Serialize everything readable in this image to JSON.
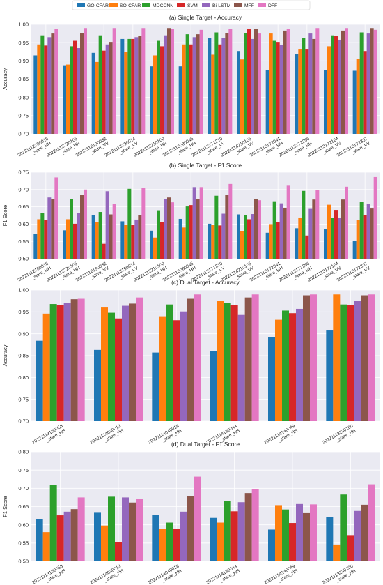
{
  "chart_data": [
    {
      "type": "bar",
      "title": "(a) Single Target - Accuracy",
      "ylabel": "Accuracy",
      "categories": [
        "20221112180018\n_stare_HH",
        "20221112220105\n_stare_HH",
        "20221112190032\n_stare_VV",
        "20221113190014\n_stare_VV",
        "20221112210100\n_stare_HH",
        "20221113080045\n_stare_HH",
        "20221112171210\n_stare_VV",
        "20221114210105\n_stare_VV",
        "20221113172041\n_stare_HH",
        "20221113172256\n_stare_HH",
        "20221113172124\n_stare_VV",
        "20221113172337\n_stare_VV"
      ],
      "series": [
        {
          "name": "GO-CFAR",
          "color": "#1f77b4",
          "values": [
            0.915,
            0.888,
            0.922,
            0.96,
            0.885,
            0.885,
            0.962,
            0.927,
            0.874,
            0.918,
            0.874,
            0.873
          ]
        },
        {
          "name": "SO-CFAR",
          "color": "#ff7f0e",
          "values": [
            0.945,
            0.89,
            0.897,
            0.925,
            0.915,
            0.945,
            0.917,
            0.904,
            0.975,
            0.933,
            0.94,
            0.905
          ]
        },
        {
          "name": "MDCCNN",
          "color": "#2ca02c",
          "values": [
            0.97,
            0.94,
            0.97,
            0.96,
            0.955,
            0.973,
            0.978,
            0.977,
            0.955,
            0.962,
            0.97,
            0.978
          ]
        },
        {
          "name": "SVM",
          "color": "#d62728",
          "values": [
            0.942,
            0.955,
            0.928,
            0.96,
            0.94,
            0.945,
            0.945,
            0.988,
            0.952,
            0.933,
            0.968,
            0.927
          ]
        },
        {
          "name": "Bi-LSTM",
          "color": "#9467bd",
          "values": [
            0.965,
            0.935,
            0.945,
            0.965,
            0.97,
            0.965,
            0.962,
            0.96,
            0.943,
            0.975,
            0.958,
            0.975
          ]
        },
        {
          "name": "MFF",
          "color": "#8c564b",
          "values": [
            0.975,
            0.977,
            0.952,
            0.968,
            0.99,
            0.973,
            0.977,
            0.987,
            0.983,
            0.96,
            0.983,
            0.99
          ]
        },
        {
          "name": "DFF",
          "color": "#e377c2",
          "values": [
            0.988,
            0.99,
            0.99,
            0.99,
            0.988,
            0.985,
            0.987,
            0.975,
            0.988,
            0.99,
            0.99,
            0.985
          ]
        }
      ],
      "ylim": [
        0.7,
        1.0
      ],
      "yticks": [
        {
          "value": 0.7,
          "label": "0.70"
        },
        0.75,
        {
          "value": 0.8,
          "label": "0.80"
        },
        0.85,
        {
          "value": 0.9,
          "label": "0.90"
        },
        0.95,
        {
          "value": 1.0,
          "label": "1.00"
        }
      ],
      "grid": true
    },
    {
      "type": "bar",
      "title": "(b) Single Target - F1 Score",
      "ylabel": "F1 Score",
      "categories": [
        "20221112180018\n_stare_HH",
        "20221112220105\n_stare_HH",
        "20221112190032\n_stare_VV",
        "20221113190014\n_stare_VV",
        "20221112210100\n_stare_HH",
        "20221113080045\n_stare_HH",
        "20221112171210\n_stare_VV",
        "20221114210105\n_stare_VV",
        "20221113172041\n_stare_HH",
        "20221113172256\n_stare_HH",
        "20221113172124\n_stare_VV",
        "20221113172337\n_stare_VV"
      ],
      "series": [
        {
          "name": "GO-CFAR",
          "color": "#1f77b4",
          "values": [
            0.572,
            0.582,
            0.626,
            0.608,
            0.581,
            0.615,
            0.601,
            0.628,
            0.575,
            0.588,
            0.585,
            0.551
          ]
        },
        {
          "name": "SO-CFAR",
          "color": "#ff7f0e",
          "values": [
            0.614,
            0.614,
            0.606,
            0.599,
            0.561,
            0.59,
            0.598,
            0.58,
            0.6,
            0.619,
            0.656,
            0.611
          ]
        },
        {
          "name": "MDCCNN",
          "color": "#2ca02c",
          "values": [
            0.632,
            0.673,
            0.635,
            0.702,
            0.64,
            0.651,
            0.682,
            0.626,
            0.666,
            0.696,
            0.618,
            0.665
          ]
        },
        {
          "name": "SVM",
          "color": "#d62728",
          "values": [
            0.611,
            0.601,
            0.543,
            0.598,
            0.606,
            0.655,
            0.596,
            0.614,
            0.605,
            0.567,
            0.641,
            0.627
          ]
        },
        {
          "name": "Bi-LSTM",
          "color": "#9467bd",
          "values": [
            0.677,
            0.632,
            0.695,
            0.613,
            0.673,
            0.707,
            0.63,
            0.629,
            0.66,
            0.644,
            0.618,
            0.659
          ]
        },
        {
          "name": "MFF",
          "color": "#8c564b",
          "values": [
            0.672,
            0.685,
            0.628,
            0.627,
            0.677,
            0.672,
            0.685,
            0.673,
            0.647,
            0.671,
            0.671,
            0.645
          ]
        },
        {
          "name": "DFF",
          "color": "#e377c2",
          "values": [
            0.735,
            0.7,
            0.658,
            0.705,
            0.663,
            0.707,
            0.716,
            0.669,
            0.711,
            0.699,
            0.708,
            0.736
          ]
        }
      ],
      "ylim": [
        0.5,
        0.75
      ],
      "yticks": [
        {
          "value": 0.5,
          "label": "0.50"
        },
        0.55,
        {
          "value": 0.6,
          "label": "0.60"
        },
        0.65,
        {
          "value": 0.7,
          "label": "0.70"
        },
        0.75
      ],
      "grid": true
    },
    {
      "type": "bar",
      "title": "(c) Dual Target - Accuracy",
      "ylabel": "Accuracy",
      "categories": [
        "20221113150058\n_stare_HH",
        "20221114030013\n_stare_HH",
        "20221114040018\n_stare_HH",
        "20221114130044\n_stare_HH",
        "20221114140049\n_stare_HH",
        "20221113230100\n_stare_HH"
      ],
      "series": [
        {
          "name": "GO-CFAR",
          "color": "#1f77b4",
          "values": [
            0.884,
            0.863,
            0.857,
            0.861,
            0.892,
            0.909
          ]
        },
        {
          "name": "SO-CFAR",
          "color": "#ff7f0e",
          "values": [
            0.946,
            0.96,
            0.94,
            0.975,
            0.932,
            0.99
          ]
        },
        {
          "name": "MDCCNN",
          "color": "#2ca02c",
          "values": [
            0.968,
            0.948,
            0.967,
            0.971,
            0.953,
            0.967
          ]
        },
        {
          "name": "SVM",
          "color": "#d62728",
          "values": [
            0.965,
            0.935,
            0.931,
            0.965,
            0.947,
            0.966
          ]
        },
        {
          "name": "Bi-LSTM",
          "color": "#9467bd",
          "values": [
            0.97,
            0.964,
            0.951,
            0.943,
            0.957,
            0.976
          ]
        },
        {
          "name": "MFF",
          "color": "#8c564b",
          "values": [
            0.979,
            0.969,
            0.98,
            0.983,
            0.988,
            0.988
          ]
        },
        {
          "name": "DFF",
          "color": "#e377c2",
          "values": [
            0.98,
            0.983,
            0.99,
            0.99,
            0.99,
            0.99
          ]
        }
      ],
      "ylim": [
        0.7,
        1.0
      ],
      "yticks": [
        {
          "value": 0.7,
          "label": "0.70"
        },
        0.75,
        {
          "value": 0.8,
          "label": "0.80"
        },
        0.85,
        {
          "value": 0.9,
          "label": "0.90"
        },
        0.95,
        {
          "value": 1.0,
          "label": "1.00"
        }
      ],
      "grid": true
    },
    {
      "type": "bar",
      "title": "(d) Dual Target - F1 Score",
      "ylabel": "F1 Score",
      "categories": [
        "20221113150058\n_stare_HH",
        "20221114030013\n_stare_HH",
        "20221114040018\n_stare_HH",
        "20221114130044\n_stare_HH",
        "20221114140049\n_stare_HH",
        "20221113230100\n_stare_HH"
      ],
      "series": [
        {
          "name": "GO-CFAR",
          "color": "#1f77b4",
          "values": [
            0.616,
            0.633,
            0.628,
            0.619,
            0.587,
            0.622
          ]
        },
        {
          "name": "SO-CFAR",
          "color": "#ff7f0e",
          "values": [
            0.58,
            0.598,
            0.589,
            0.606,
            0.654,
            0.546
          ]
        },
        {
          "name": "MDCCNN",
          "color": "#2ca02c",
          "values": [
            0.71,
            0.677,
            0.606,
            0.665,
            0.642,
            0.683
          ]
        },
        {
          "name": "SVM",
          "color": "#d62728",
          "values": [
            0.626,
            0.552,
            0.589,
            0.637,
            0.605,
            0.57
          ]
        },
        {
          "name": "Bi-LSTM",
          "color": "#9467bd",
          "values": [
            0.636,
            0.675,
            0.636,
            0.662,
            0.657,
            0.638
          ]
        },
        {
          "name": "MFF",
          "color": "#8c564b",
          "values": [
            0.643,
            0.661,
            0.678,
            0.687,
            0.632,
            0.655
          ]
        },
        {
          "name": "DFF",
          "color": "#e377c2",
          "values": [
            0.675,
            0.671,
            0.732,
            0.698,
            0.656,
            0.711
          ]
        }
      ],
      "ylim": [
        0.5,
        0.8
      ],
      "yticks": [
        {
          "value": 0.5,
          "label": "0.50"
        },
        0.55,
        {
          "value": 0.6,
          "label": "0.60"
        },
        0.65,
        {
          "value": 0.7,
          "label": "0.70"
        },
        0.75,
        {
          "value": 0.8,
          "label": "0.80"
        }
      ],
      "grid": true
    }
  ]
}
